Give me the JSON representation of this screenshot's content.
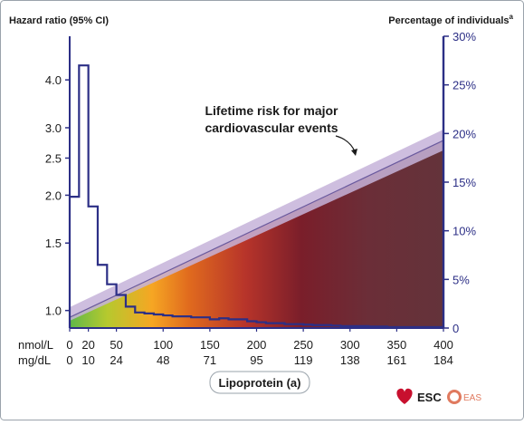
{
  "chart_data": {
    "type": "area",
    "y_left_label": "Hazard ratio (95% CI)",
    "y_right_label": "Percentage of individuals",
    "y_right_label_superscript": "a",
    "xlabel": "Lipoprotein (a)",
    "annotation": [
      "Lifetime risk for major",
      "cardiovascular events"
    ],
    "unit_nmol": "nmol/L",
    "unit_mgdl": "mg/dL",
    "xlim_nmol": [
      0,
      400
    ],
    "x_ticks": [
      {
        "nmol": 0,
        "nmol_label": "0",
        "mg_label": "0"
      },
      {
        "nmol": 20,
        "nmol_label": "20",
        "mg_label": "10"
      },
      {
        "nmol": 50,
        "nmol_label": "50",
        "mg_label": "24"
      },
      {
        "nmol": 100,
        "nmol_label": "100",
        "mg_label": "48"
      },
      {
        "nmol": 150,
        "nmol_label": "150",
        "mg_label": "71"
      },
      {
        "nmol": 200,
        "nmol_label": "200",
        "mg_label": "95"
      },
      {
        "nmol": 250,
        "nmol_label": "250",
        "mg_label": "119"
      },
      {
        "nmol": 300,
        "nmol_label": "300",
        "mg_label": "138"
      },
      {
        "nmol": 350,
        "nmol_label": "350",
        "mg_label": "161"
      },
      {
        "nmol": 400,
        "nmol_label": "400",
        "mg_label": "184"
      }
    ],
    "y_left_scale": "log",
    "ylim_left": [
      0.9,
      5.2
    ],
    "y_left_ticks": [
      {
        "value": 1.0,
        "label": "1.0"
      },
      {
        "value": 1.5,
        "label": "1.5"
      },
      {
        "value": 2.0,
        "label": "2.0"
      },
      {
        "value": 2.5,
        "label": "2.5"
      },
      {
        "value": 3.0,
        "label": "3.0"
      },
      {
        "value": 4.0,
        "label": "4.0"
      }
    ],
    "ylim_right": [
      0,
      30
    ],
    "y_right_ticks": [
      {
        "value": 0,
        "label": "0"
      },
      {
        "value": 5,
        "label": "5%"
      },
      {
        "value": 10,
        "label": "10%"
      },
      {
        "value": 15,
        "label": "15%"
      },
      {
        "value": 20,
        "label": "20%"
      },
      {
        "value": 25,
        "label": "25%"
      },
      {
        "value": 30,
        "label": "30%"
      }
    ],
    "risk_line": {
      "x_nmol": [
        0,
        400
      ],
      "hazard_ratio": [
        0.96,
        2.78
      ],
      "ci_low": [
        0.94,
        2.62
      ],
      "ci_high": [
        1.02,
        2.97
      ]
    },
    "distribution": {
      "bin_edges_nmol": [
        0,
        10,
        20,
        30,
        40,
        50,
        60,
        70,
        80,
        90,
        100,
        110,
        120,
        130,
        140,
        150,
        160,
        170,
        180,
        190,
        200,
        210,
        220,
        230,
        240,
        250,
        260,
        270,
        280,
        290,
        300,
        310,
        320,
        330,
        340,
        350,
        360,
        370,
        380,
        390,
        400
      ],
      "percent": [
        13.5,
        27,
        12.5,
        6.5,
        4.5,
        3.4,
        2.2,
        1.6,
        1.5,
        1.4,
        1.3,
        1.2,
        1.2,
        1.1,
        1.1,
        0.9,
        1.0,
        0.9,
        0.9,
        0.7,
        0.6,
        0.5,
        0.5,
        0.4,
        0.4,
        0.35,
        0.3,
        0.3,
        0.25,
        0.2,
        0.2,
        0.2,
        0.15,
        0.15,
        0.1,
        0.1,
        0.1,
        0.1,
        0.1,
        0.1
      ]
    },
    "colors": {
      "axis": "#2c2f86",
      "histogram": "#2c2f86",
      "ci_band": "#c5b3d9",
      "risk_line": "#6a5a9e",
      "gradient": [
        "#5fb84a",
        "#b6c92e",
        "#f6a623",
        "#e06a1e",
        "#b7342a",
        "#7a1e2a",
        "#6b2e38",
        "#64333a"
      ]
    }
  },
  "logos": {
    "esc_label": "ESC",
    "eas_label": "EAS",
    "esc_color": "#c8102e",
    "eas_color": "#e07a5f"
  }
}
